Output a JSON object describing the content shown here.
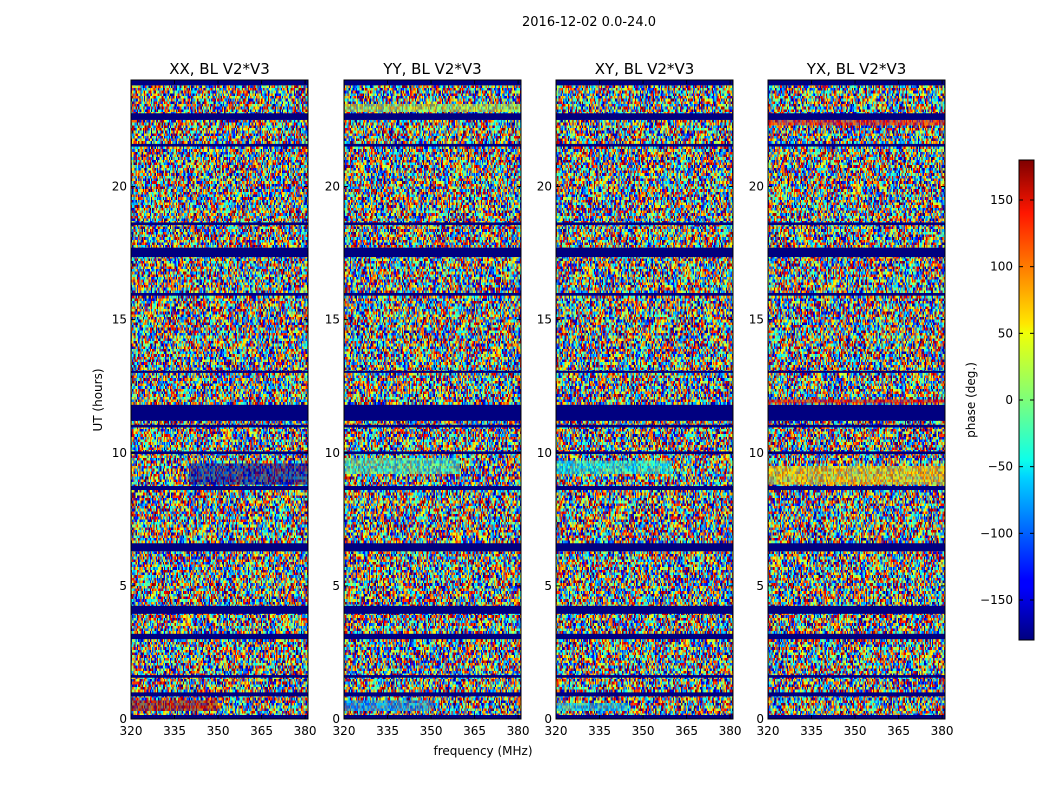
{
  "chart_data": {
    "type": "heatmap",
    "suptitle": "2016-12-02 0.0-24.0",
    "xlabel": "frequency (MHz)",
    "ylabel": "UT (hours)",
    "colorbar_label": "phase (deg.)",
    "colormap": "jet",
    "xlim": [
      320,
      381
    ],
    "ylim": [
      0,
      24
    ],
    "clim": [
      -180,
      180
    ],
    "x_ticks": [
      "320",
      "335",
      "350",
      "365",
      "380"
    ],
    "y_ticks": [
      "0",
      "5",
      "10",
      "15",
      "20"
    ],
    "colorbar_ticks": [
      "−150",
      "−100",
      "−50",
      "0",
      "50",
      "100",
      "150"
    ],
    "colorbar_tick_values": [
      -150,
      -100,
      -50,
      0,
      50,
      100,
      150
    ],
    "panels": [
      {
        "name": "XX, BL V2*V3",
        "flagged_ut_bands": [
          [
            0.0,
            0.15
          ],
          [
            0.85,
            1.0
          ],
          [
            1.55,
            1.65
          ],
          [
            3.0,
            3.2
          ],
          [
            3.95,
            4.25
          ],
          [
            6.3,
            6.6
          ],
          [
            8.6,
            8.75
          ],
          [
            9.95,
            10.05
          ],
          [
            10.95,
            11.05
          ],
          [
            11.2,
            11.8
          ],
          [
            13.0,
            13.08
          ],
          [
            15.9,
            16.0
          ],
          [
            17.35,
            17.7
          ],
          [
            18.55,
            18.65
          ],
          [
            21.5,
            21.6
          ],
          [
            22.5,
            22.75
          ],
          [
            23.8,
            24.0
          ]
        ],
        "patches": [
          {
            "ut": [
              0.3,
              0.7
            ],
            "freq": [
              320,
              350
            ],
            "value": 160
          },
          {
            "ut": [
              8.8,
              9.6
            ],
            "freq": [
              340,
              381
            ],
            "value": -170
          }
        ]
      },
      {
        "name": "YY, BL V2*V3",
        "flagged_ut_bands": [
          [
            0.0,
            0.15
          ],
          [
            0.85,
            1.0
          ],
          [
            1.55,
            1.65
          ],
          [
            3.0,
            3.2
          ],
          [
            3.95,
            4.25
          ],
          [
            6.3,
            6.6
          ],
          [
            8.6,
            8.75
          ],
          [
            9.95,
            10.05
          ],
          [
            10.95,
            11.05
          ],
          [
            11.2,
            11.8
          ],
          [
            13.0,
            13.08
          ],
          [
            15.9,
            16.0
          ],
          [
            17.35,
            17.7
          ],
          [
            18.55,
            18.65
          ],
          [
            21.5,
            21.6
          ],
          [
            22.5,
            22.75
          ],
          [
            23.8,
            24.0
          ]
        ],
        "patches": [
          {
            "ut": [
              0.3,
              0.7
            ],
            "freq": [
              320,
              350
            ],
            "value": -80
          },
          {
            "ut": [
              9.2,
              9.8
            ],
            "freq": [
              320,
              360
            ],
            "value": -20
          },
          {
            "ut": [
              22.8,
              23.1
            ],
            "freq": [
              320,
              381
            ],
            "value": 20
          }
        ]
      },
      {
        "name": "XY, BL V2*V3",
        "flagged_ut_bands": [
          [
            0.0,
            0.15
          ],
          [
            0.85,
            1.0
          ],
          [
            1.55,
            1.65
          ],
          [
            3.0,
            3.2
          ],
          [
            3.95,
            4.25
          ],
          [
            6.3,
            6.6
          ],
          [
            8.6,
            8.75
          ],
          [
            9.95,
            10.05
          ],
          [
            10.95,
            11.05
          ],
          [
            11.2,
            11.8
          ],
          [
            13.0,
            13.08
          ],
          [
            15.9,
            16.0
          ],
          [
            17.35,
            17.7
          ],
          [
            18.55,
            18.65
          ],
          [
            21.5,
            21.6
          ],
          [
            22.5,
            22.75
          ],
          [
            23.8,
            24.0
          ]
        ],
        "patches": [
          {
            "ut": [
              0.3,
              0.6
            ],
            "freq": [
              320,
              345
            ],
            "value": -60
          },
          {
            "ut": [
              9.2,
              9.7
            ],
            "freq": [
              320,
              360
            ],
            "value": -40
          }
        ]
      },
      {
        "name": "YX, BL V2*V3",
        "flagged_ut_bands": [
          [
            0.0,
            0.15
          ],
          [
            0.85,
            1.0
          ],
          [
            1.55,
            1.65
          ],
          [
            3.0,
            3.2
          ],
          [
            3.95,
            4.25
          ],
          [
            6.3,
            6.6
          ],
          [
            8.6,
            8.75
          ],
          [
            9.95,
            10.05
          ],
          [
            10.95,
            11.05
          ],
          [
            11.2,
            11.8
          ],
          [
            13.0,
            13.08
          ],
          [
            15.9,
            16.0
          ],
          [
            17.35,
            17.7
          ],
          [
            18.55,
            18.65
          ],
          [
            21.5,
            21.6
          ],
          [
            22.5,
            22.75
          ],
          [
            23.8,
            24.0
          ]
        ],
        "patches": [
          {
            "ut": [
              8.8,
              9.5
            ],
            "freq": [
              320,
              381
            ],
            "value": 60
          },
          {
            "ut": [
              11.85,
              12.0
            ],
            "freq": [
              320,
              381
            ],
            "value": 140
          },
          {
            "ut": [
              22.3,
              22.5
            ],
            "freq": [
              320,
              381
            ],
            "value": 130
          }
        ]
      }
    ]
  }
}
